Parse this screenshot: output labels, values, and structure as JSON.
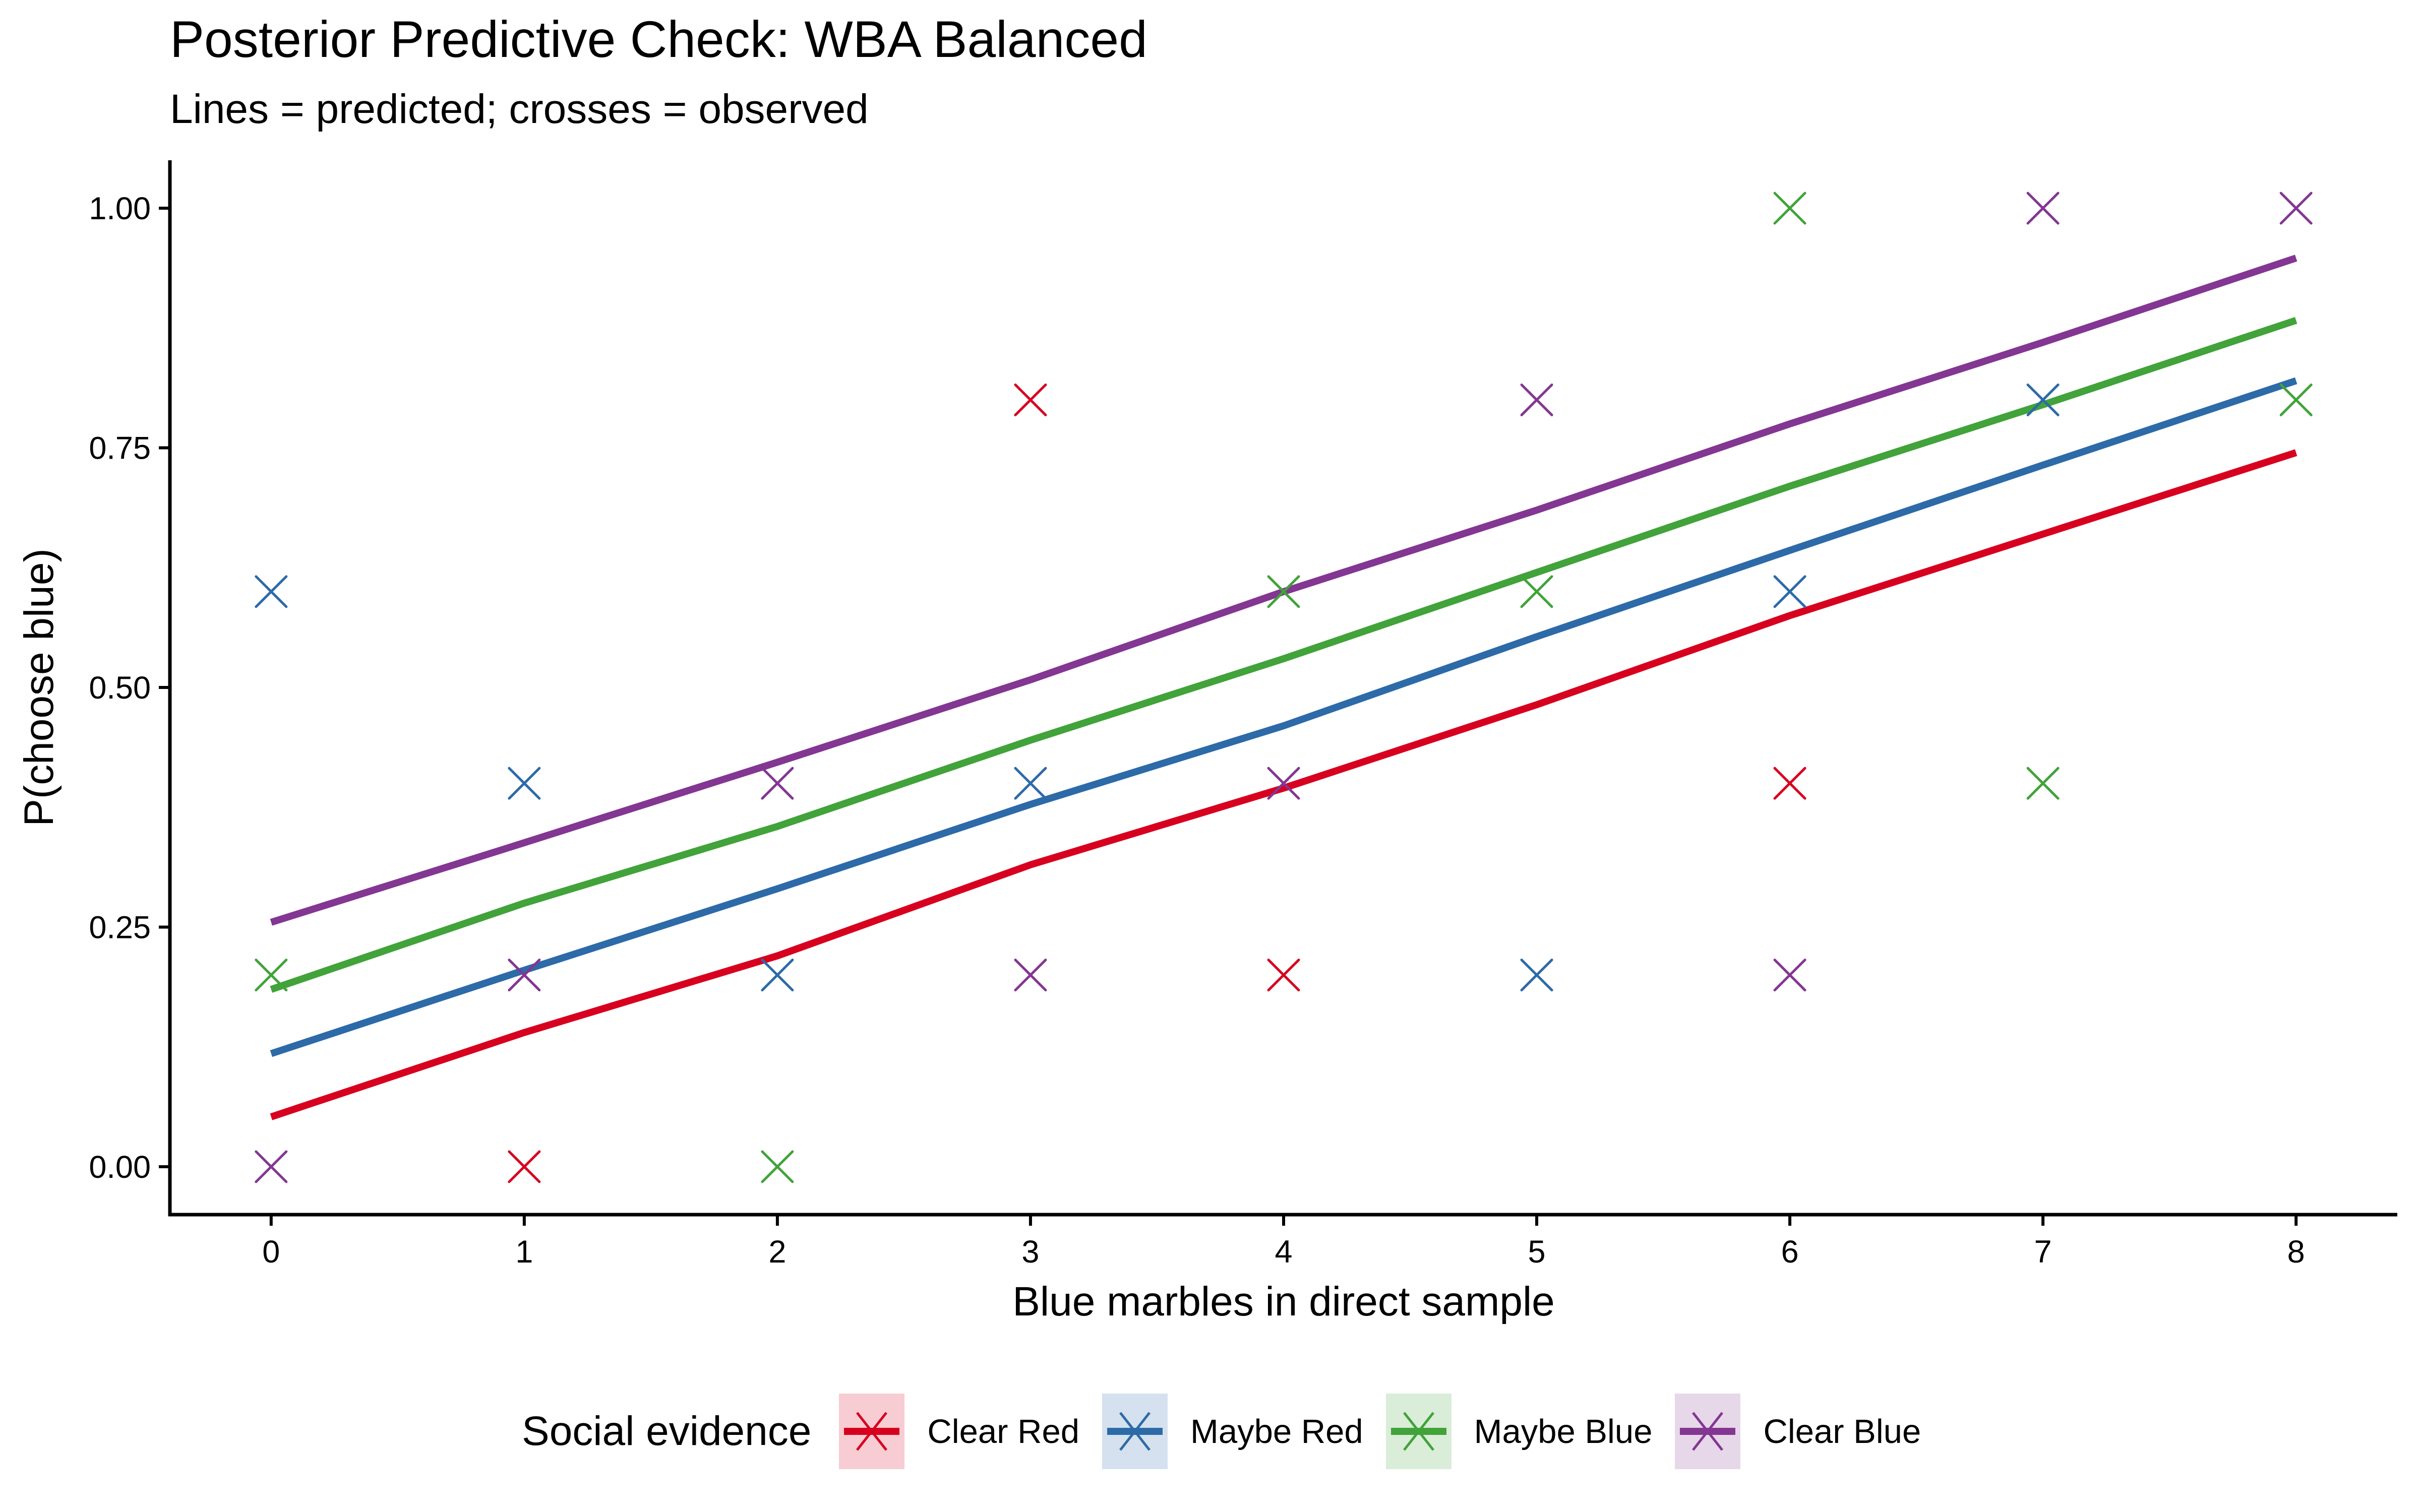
{
  "chart_data": {
    "type": "line",
    "title": "Posterior Predictive Check: WBA Balanced",
    "subtitle": "Lines = predicted; crosses = observed",
    "xlabel": "Blue marbles in direct sample",
    "ylabel": "P(choose blue)",
    "x": [
      0,
      1,
      2,
      3,
      4,
      5,
      6,
      7,
      8
    ],
    "xticks": [
      "0",
      "1",
      "2",
      "3",
      "4",
      "5",
      "6",
      "7",
      "8"
    ],
    "yticks": [
      "0.00",
      "0.25",
      "0.50",
      "0.75",
      "1.00"
    ],
    "ytick_values": [
      0,
      0.25,
      0.5,
      0.75,
      1.0
    ],
    "xlim": [
      -0.4,
      8.4
    ],
    "ylim": [
      -0.05,
      1.05
    ],
    "grid": false,
    "legend_position": "bottom",
    "legend_title": "Social evidence",
    "series": [
      {
        "name": "Clear Red",
        "color": "#D7001F",
        "predicted": [
          0.052,
          0.14,
          0.22,
          0.315,
          0.395,
          0.482,
          0.575,
          0.66,
          0.745
        ],
        "observed": [
          [
            1,
            0.0
          ],
          [
            3,
            0.8
          ],
          [
            4,
            0.2
          ],
          [
            6,
            0.4
          ]
        ]
      },
      {
        "name": "Maybe Red",
        "color": "#2D6AA8",
        "predicted": [
          0.118,
          0.205,
          0.29,
          0.378,
          0.46,
          0.553,
          0.643,
          0.732,
          0.82
        ],
        "observed": [
          [
            0,
            0.6
          ],
          [
            1,
            0.4
          ],
          [
            2,
            0.2
          ],
          [
            3,
            0.4
          ],
          [
            5,
            0.2
          ],
          [
            6,
            0.6
          ],
          [
            7,
            0.8
          ]
        ]
      },
      {
        "name": "Maybe Blue",
        "color": "#41A33A",
        "predicted": [
          0.185,
          0.275,
          0.355,
          0.445,
          0.53,
          0.62,
          0.71,
          0.795,
          0.883
        ],
        "observed": [
          [
            0,
            0.2
          ],
          [
            2,
            0.0
          ],
          [
            4,
            0.6
          ],
          [
            5,
            0.6
          ],
          [
            6,
            1.0
          ],
          [
            7,
            0.4
          ],
          [
            8,
            0.8
          ]
        ]
      },
      {
        "name": "Clear Blue",
        "color": "#833692",
        "predicted": [
          0.255,
          0.338,
          0.422,
          0.508,
          0.6,
          0.685,
          0.775,
          0.86,
          0.948
        ],
        "observed": [
          [
            0,
            0.0
          ],
          [
            1,
            0.2
          ],
          [
            2,
            0.4
          ],
          [
            3,
            0.2
          ],
          [
            4,
            0.4
          ],
          [
            5,
            0.8
          ],
          [
            6,
            0.2
          ],
          [
            7,
            1.0
          ],
          [
            8,
            1.0
          ]
        ]
      }
    ]
  }
}
